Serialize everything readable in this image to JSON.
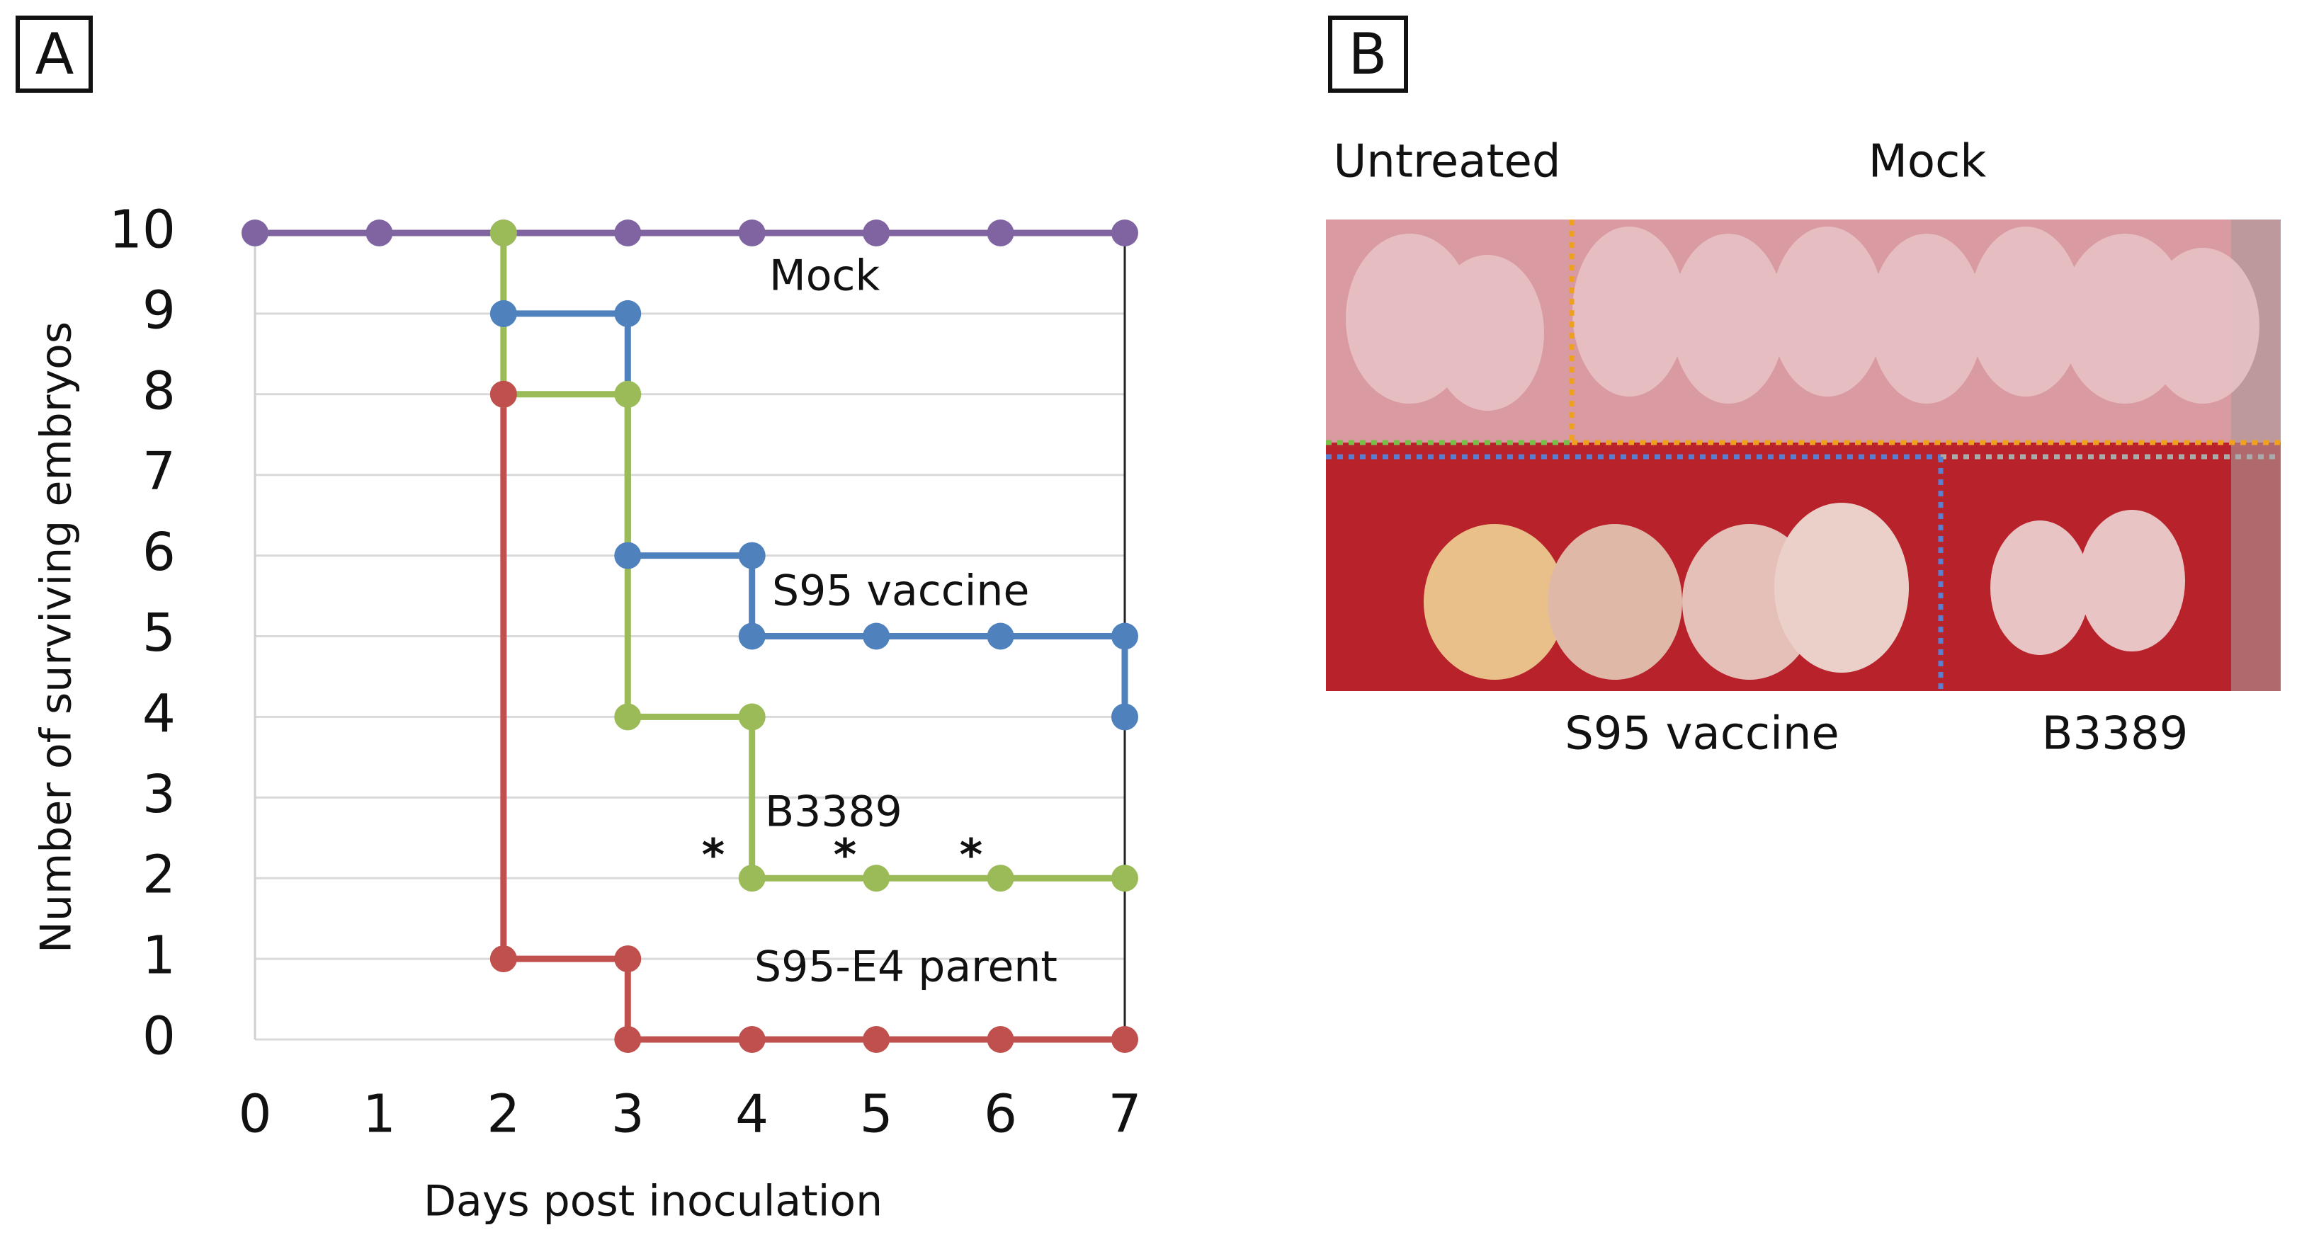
{
  "panel_labels": [
    "A",
    "B"
  ],
  "chart_data": {
    "type": "line",
    "x_label": "Days post inoculation",
    "y_label": "Number of surviving  embryos",
    "xlim": [
      0,
      7
    ],
    "xticks": [
      0,
      1,
      2,
      3,
      4,
      5,
      6,
      7
    ],
    "ylim": [
      0,
      10
    ],
    "yticks": [
      0,
      1,
      2,
      3,
      4,
      5,
      6,
      7,
      8,
      9,
      10
    ],
    "grid": true,
    "series": [
      {
        "name": "Mock",
        "color": "#8064a2",
        "x": [
          0,
          1,
          2,
          3,
          4,
          5,
          6,
          7
        ],
        "values": [
          10,
          10,
          10,
          10,
          10,
          10,
          10,
          10
        ]
      },
      {
        "name": "S95 vaccine",
        "color": "#4f81bd",
        "x": [
          2,
          3,
          3,
          4,
          4,
          5,
          6,
          7,
          7
        ],
        "values": [
          9,
          9,
          6,
          6,
          5,
          5,
          5,
          5,
          4
        ]
      },
      {
        "name": "B3389",
        "color": "#9bbb59",
        "x": [
          2,
          2,
          3,
          3,
          4,
          4,
          5,
          6,
          7
        ],
        "values": [
          10,
          8,
          8,
          4,
          4,
          2,
          2,
          2,
          2
        ]
      },
      {
        "name": "S95-E4 parent",
        "color": "#c0504d",
        "x": [
          2,
          2,
          3,
          3,
          4,
          5,
          6,
          7
        ],
        "values": [
          8,
          1,
          1,
          0,
          0,
          0,
          0,
          0
        ]
      }
    ],
    "annotations": [
      "*",
      "*",
      "*"
    ]
  },
  "photo_labels": [
    "Untreated",
    "Mock",
    "S95 vaccine",
    "B3389"
  ]
}
